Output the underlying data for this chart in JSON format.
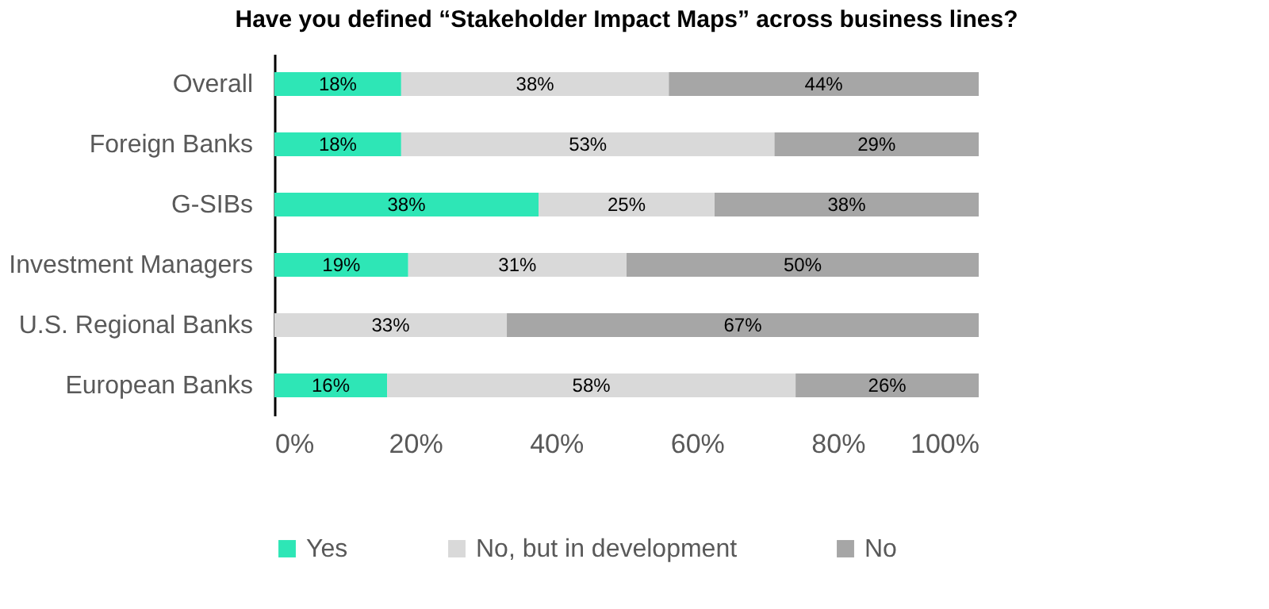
{
  "chart_data": {
    "type": "bar",
    "orientation": "horizontal",
    "stacked": true,
    "title": "Have you defined “Stakeholder Impact Maps” across business lines?",
    "categories": [
      "Overall",
      "Foreign Banks",
      "G-SIBs",
      "Investment Managers",
      "U.S. Regional Banks",
      "European Banks"
    ],
    "series": [
      {
        "name": "Yes",
        "color": "#2ee6b6",
        "values": [
          18,
          18,
          37.5,
          19,
          0,
          16
        ],
        "value_labels": [
          "18%",
          "18%",
          "38%",
          "19%",
          null,
          "16%"
        ]
      },
      {
        "name": "No, but in development",
        "color": "#d9d9d9",
        "values": [
          38,
          53,
          25,
          31,
          33,
          58
        ],
        "value_labels": [
          "38%",
          "53%",
          "25%",
          "31%",
          "33%",
          "58%"
        ]
      },
      {
        "name": "No",
        "color": "#a6a6a6",
        "values": [
          44,
          29,
          37.5,
          50,
          67,
          26
        ],
        "value_labels": [
          "44%",
          "29%",
          "38%",
          "50%",
          "67%",
          "26%"
        ]
      }
    ],
    "xlim": [
      0,
      100
    ],
    "xticks": [
      {
        "value": 0,
        "label": "0%"
      },
      {
        "value": 20,
        "label": "20%"
      },
      {
        "value": 40,
        "label": "40%"
      },
      {
        "value": 60,
        "label": "60%"
      },
      {
        "value": 80,
        "label": "80%"
      },
      {
        "value": 100,
        "label": "100%"
      }
    ],
    "grid": false,
    "legend": "bottom"
  }
}
